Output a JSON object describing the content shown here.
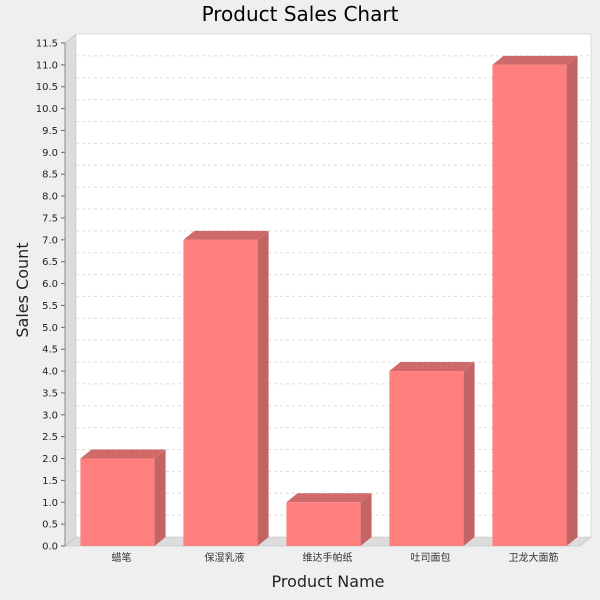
{
  "chart_data": {
    "type": "bar",
    "title": "Product Sales Chart",
    "xlabel": "Product Name",
    "ylabel": "Sales Count",
    "categories": [
      "蜡笔",
      "保湿乳液",
      "维达手帕纸",
      "吐司面包",
      "卫龙大面筋"
    ],
    "values": [
      2,
      7,
      1,
      4,
      11
    ],
    "ylim": [
      0,
      11.5
    ],
    "ytick_step": 0.5,
    "yticks": [
      "0.0",
      "0.5",
      "1.0",
      "1.5",
      "2.0",
      "2.5",
      "3.0",
      "3.5",
      "4.0",
      "4.5",
      "5.0",
      "5.5",
      "6.0",
      "6.5",
      "7.0",
      "7.5",
      "8.0",
      "8.5",
      "9.0",
      "9.5",
      "10.0",
      "10.5",
      "11.0",
      "11.5"
    ],
    "grid": true,
    "bar_style": "3d",
    "colors": {
      "bar_front": "#ff7f7f",
      "bar_side": "#c36464",
      "bar_top": "#d06a6a",
      "plot_bg": "#ffffff",
      "page_bg": "#efefef",
      "grid": "#dddddd",
      "wall": "#dcdcdc"
    }
  }
}
